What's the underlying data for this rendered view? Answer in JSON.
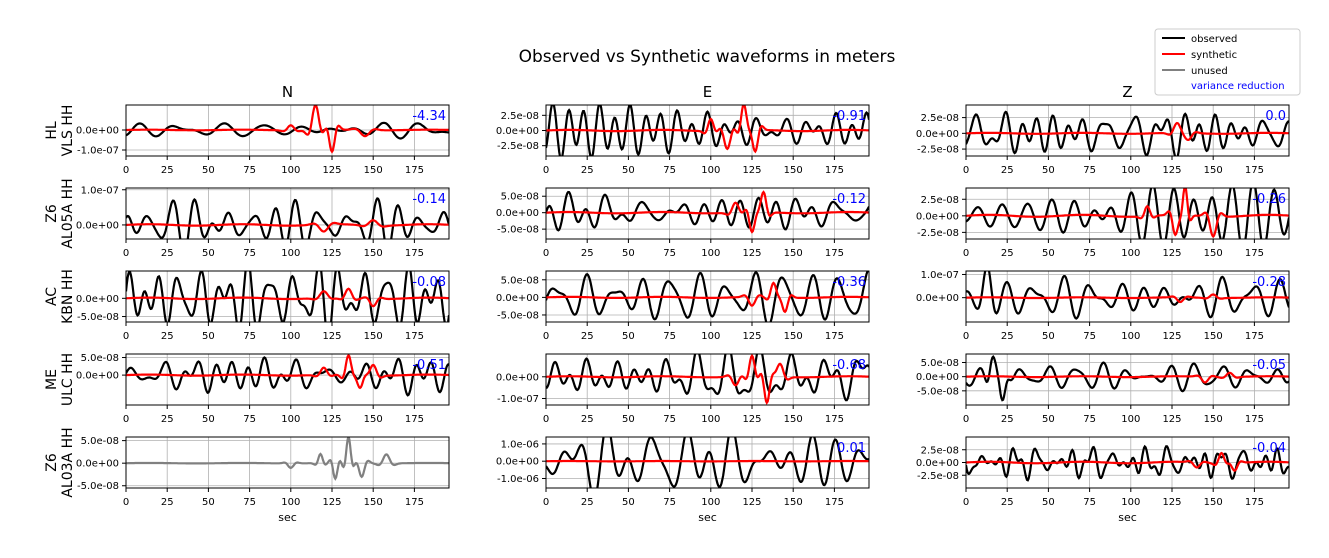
{
  "title": "Observed vs Synthetic waveforms in meters",
  "xlabel": "sec",
  "columns": [
    "N",
    "E",
    "Z"
  ],
  "rows": [
    {
      "net": "HL",
      "sta": "VLS HH"
    },
    {
      "net": "Z6",
      "sta": "AL05A HH"
    },
    {
      "net": "AC",
      "sta": "KBN HH"
    },
    {
      "net": "ME",
      "sta": "ULC HH"
    },
    {
      "net": "Z6",
      "sta": "AL03A HH"
    }
  ],
  "legend": {
    "items": [
      {
        "label": "observed",
        "color": "#000000"
      },
      {
        "label": "synthetic",
        "color": "#ff0000"
      },
      {
        "label": "unused",
        "color": "#808080"
      }
    ],
    "vr_label": "variance reduction",
    "vr_color": "#0000ff",
    "location": "top-right"
  },
  "colors": {
    "observed": "#000000",
    "synthetic": "#ff0000",
    "unused": "#808080",
    "vr": "#0000ff",
    "grid": "#b0b0b0"
  },
  "chart_data": {
    "type": "line",
    "grid": true,
    "x_range": [
      0,
      196
    ],
    "x_ticks": [
      0,
      25,
      50,
      75,
      100,
      125,
      150,
      175
    ],
    "x_tick_labels": [
      "0",
      "25",
      "50",
      "75",
      "100",
      "125",
      "150",
      "175"
    ],
    "panels": [
      {
        "row": 0,
        "col": 0,
        "vr": "-4.34",
        "used": true,
        "ylim": [
          -1.3e-07,
          1.25e-07
        ],
        "yticks": [
          0,
          -1e-07
        ],
        "ytick_labels": [
          "0.0e+00",
          "-1.0e-07"
        ],
        "obs": {
          "amp": 3e-08,
          "period": 22,
          "seed": 11,
          "events": []
        },
        "syn": {
          "amp": 3e-09,
          "events": [
            [
              100,
              2.5e-08,
              6
            ],
            [
              115,
              1.25e-07,
              6
            ],
            [
              125,
              -1.1e-07,
              5
            ],
            [
              145,
              -3e-08,
              8
            ]
          ]
        }
      },
      {
        "row": 0,
        "col": 1,
        "vr": "-0.91",
        "used": true,
        "ylim": [
          -4.2e-08,
          4.2e-08
        ],
        "yticks": [
          2.5e-08,
          0,
          -2.5e-08
        ],
        "ytick_labels": [
          "2.5e-08",
          "0.0e+00",
          "-2.5e-08"
        ],
        "obs": {
          "amp": 3.5e-08,
          "period": 13,
          "seed": 12,
          "events": []
        },
        "syn": {
          "amp": 2e-09,
          "events": [
            [
              100,
              2e-08,
              5
            ],
            [
              110,
              -3e-08,
              6
            ],
            [
              120,
              4.2e-08,
              5
            ],
            [
              127,
              -3.5e-08,
              5
            ]
          ]
        }
      },
      {
        "row": 0,
        "col": 2,
        "vr": "0.0",
        "used": true,
        "ylim": [
          -3.6e-08,
          4.5e-08
        ],
        "yticks": [
          2.5e-08,
          0,
          -2.5e-08
        ],
        "ytick_labels": [
          "2.5e-08",
          "0.0e+00",
          "-2.5e-08"
        ],
        "obs": {
          "amp": 3.5e-08,
          "period": 15,
          "seed": 13,
          "events": []
        },
        "syn": {
          "amp": 1.5e-09,
          "events": [
            [
              128,
              1.5e-08,
              6
            ],
            [
              135,
              -1e-08,
              6
            ]
          ]
        }
      },
      {
        "row": 1,
        "col": 0,
        "vr": "-0.14",
        "used": true,
        "ylim": [
          -4e-08,
          1.05e-07
        ],
        "yticks": [
          1e-07,
          0
        ],
        "ytick_labels": [
          "1.0e-07",
          "0.0e+00"
        ],
        "obs": {
          "amp": 6e-08,
          "period": 13,
          "seed": 21,
          "events": []
        },
        "syn": {
          "amp": 4e-09,
          "events": [
            [
              120,
              -2e-08,
              8
            ],
            [
              150,
              1.5e-08,
              8
            ]
          ]
        }
      },
      {
        "row": 1,
        "col": 1,
        "vr": "-0.12",
        "used": true,
        "ylim": [
          -8e-08,
          7.5e-08
        ],
        "yticks": [
          5e-08,
          0,
          -5e-08
        ],
        "ytick_labels": [
          "5.0e-08",
          "0.0e+00",
          "-5.0e-08"
        ],
        "obs": {
          "amp": 5.5e-08,
          "period": 18,
          "seed": 22,
          "events": []
        },
        "syn": {
          "amp": 4e-09,
          "events": [
            [
              115,
              3e-08,
              6
            ],
            [
              125,
              -6e-08,
              5
            ],
            [
              132,
              6e-08,
              5
            ]
          ]
        }
      },
      {
        "row": 1,
        "col": 2,
        "vr": "-0.26",
        "used": true,
        "ylim": [
          -3.5e-08,
          4.2e-08
        ],
        "yticks": [
          2.5e-08,
          0,
          -2.5e-08
        ],
        "ytick_labels": [
          "2.5e-08",
          "0.0e+00",
          "-2.5e-08"
        ],
        "obs": {
          "amp": 3.2e-08,
          "period": 11,
          "seed": 23,
          "events": []
        },
        "syn": {
          "amp": 3e-09,
          "events": [
            [
              110,
              1.5e-08,
              5
            ],
            [
              127,
              -3e-08,
              5
            ],
            [
              133,
              4.2e-08,
              4
            ],
            [
              150,
              -3e-08,
              6
            ]
          ]
        }
      },
      {
        "row": 2,
        "col": 0,
        "vr": "-0.08",
        "used": true,
        "ylim": [
          -6.5e-08,
          7.5e-08
        ],
        "yticks": [
          0,
          -5e-08
        ],
        "ytick_labels": [
          "0.0e+00",
          "-5.0e-08"
        ],
        "obs": {
          "amp": 6e-08,
          "period": 13,
          "seed": 31,
          "events": []
        },
        "syn": {
          "amp": 4e-09,
          "events": [
            [
              120,
              1.8e-08,
              7
            ],
            [
              135,
              2.5e-08,
              6
            ],
            [
              150,
              -2e-08,
              6
            ]
          ]
        }
      },
      {
        "row": 2,
        "col": 1,
        "vr": "-0.36",
        "used": true,
        "ylim": [
          -7e-08,
          7.5e-08
        ],
        "yticks": [
          5e-08,
          0,
          -5e-08
        ],
        "ytick_labels": [
          "5.0e-08",
          "0.0e+00",
          "-5.0e-08"
        ],
        "obs": {
          "amp": 5.5e-08,
          "period": 18,
          "seed": 32,
          "events": []
        },
        "syn": {
          "amp": 3e-09,
          "events": [
            [
              125,
              -2.5e-08,
              6
            ],
            [
              138,
              4e-08,
              5
            ],
            [
              145,
              -4e-08,
              5
            ]
          ]
        }
      },
      {
        "row": 2,
        "col": 2,
        "vr": "-0.28",
        "used": true,
        "ylim": [
          -1.05e-07,
          1.15e-07
        ],
        "yticks": [
          1e-07,
          0
        ],
        "ytick_labels": [
          "1.0e-07",
          "0.0e+00"
        ],
        "obs": {
          "amp": 6e-08,
          "period": 20,
          "seed": 33,
          "events": [
            [
              13,
              1.1e-07,
              7
            ]
          ]
        },
        "syn": {
          "amp": 3e-09,
          "events": [
            [
              130,
              -2e-08,
              6
            ],
            [
              150,
              1.5e-08,
              6
            ]
          ]
        }
      },
      {
        "row": 3,
        "col": 0,
        "vr": "-0.51",
        "used": true,
        "ylim": [
          -8.5e-08,
          6e-08
        ],
        "yticks": [
          5e-08,
          0
        ],
        "ytick_labels": [
          "5.0e-08",
          "0.0e+00"
        ],
        "obs": {
          "amp": 4e-08,
          "period": 14,
          "seed": 41,
          "events": []
        },
        "syn": {
          "amp": 3e-09,
          "events": [
            [
              120,
              2e-08,
              6
            ],
            [
              135,
              5.5e-08,
              5
            ],
            [
              142,
              -3.5e-08,
              5
            ],
            [
              150,
              3e-08,
              6
            ]
          ]
        }
      },
      {
        "row": 3,
        "col": 1,
        "vr": "-0.68",
        "used": true,
        "ylim": [
          -1.3e-07,
          1.05e-07
        ],
        "yticks": [
          0,
          -1e-07
        ],
        "ytick_labels": [
          "0.0e+00",
          "-1.0e-07"
        ],
        "obs": {
          "amp": 8e-08,
          "period": 16,
          "seed": 42,
          "events": []
        },
        "syn": {
          "amp": 5e-09,
          "events": [
            [
              115,
              -4e-08,
              6
            ],
            [
              125,
              9.5e-08,
              5
            ],
            [
              134,
              -1.2e-07,
              5
            ],
            [
              142,
              6e-08,
              6
            ]
          ]
        }
      },
      {
        "row": 3,
        "col": 2,
        "vr": "-0.05",
        "used": true,
        "ylim": [
          -1e-07,
          8e-08
        ],
        "yticks": [
          5e-08,
          0,
          -5e-08
        ],
        "ytick_labels": [
          "5.0e-08",
          "0.0e+00",
          "-5.0e-08"
        ],
        "obs": {
          "amp": 3.5e-08,
          "period": 13,
          "seed": 43,
          "events": [
            [
              16,
              8e-08,
              5
            ],
            [
              22,
              -9e-08,
              5
            ]
          ]
        },
        "syn": {
          "amp": 3e-09,
          "events": [
            [
              145,
              -2e-08,
              6
            ],
            [
              160,
              1.5e-08,
              6
            ]
          ]
        }
      },
      {
        "row": 4,
        "col": 0,
        "vr": "",
        "used": false,
        "ylim": [
          -5.5e-08,
          5.8e-08
        ],
        "yticks": [
          5e-08,
          0,
          -5e-08
        ],
        "ytick_labels": [
          "5.0e-08",
          "0.0e+00",
          "-5.0e-08"
        ],
        "obs": {
          "amp": 1e-09,
          "period": 10,
          "seed": 51,
          "events": [
            [
              100,
              -1e-08,
              5
            ],
            [
              118,
              2e-08,
              4
            ],
            [
              127,
              -3.5e-08,
              4
            ],
            [
              135,
              5.8e-08,
              4
            ],
            [
              143,
              -3e-08,
              5
            ],
            [
              158,
              2e-08,
              6
            ]
          ]
        },
        "syn": null
      },
      {
        "row": 4,
        "col": 1,
        "vr": "0.01",
        "used": true,
        "ylim": [
          -1.55e-06,
          1.4e-06
        ],
        "yticks": [
          1e-06,
          0,
          -1e-06
        ],
        "ytick_labels": [
          "1.0e-06",
          "0.0e+00",
          "-1.0e-06"
        ],
        "obs": {
          "amp": 1.2e-06,
          "period": 22,
          "seed": 52,
          "events": []
        },
        "syn": {
          "amp": 2e-08,
          "events": []
        }
      },
      {
        "row": 4,
        "col": 2,
        "vr": "-0.04",
        "used": true,
        "ylim": [
          -5e-08,
          5e-08
        ],
        "yticks": [
          2.5e-08,
          0,
          -2.5e-08
        ],
        "ytick_labels": [
          "2.5e-08",
          "0.0e+00",
          "-2.5e-08"
        ],
        "obs": {
          "amp": 3e-08,
          "period": 11,
          "seed": 53,
          "events": []
        },
        "syn": {
          "amp": 3e-09,
          "events": [
            [
              140,
              -1e-08,
              6
            ],
            [
              155,
              2e-08,
              5
            ],
            [
              163,
              -1.5e-08,
              5
            ]
          ]
        }
      }
    ]
  }
}
